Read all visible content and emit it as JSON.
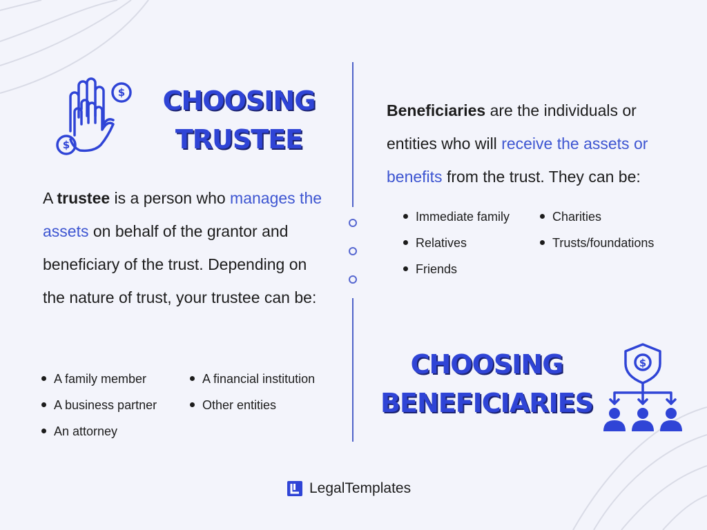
{
  "trustee": {
    "heading_line1": "CHOOSING",
    "heading_line2": "TRUSTEE",
    "para": {
      "pre": "A ",
      "bold": "trustee",
      "mid": " is a person who ",
      "highlight": "manages the assets",
      "post": " on behalf of the grantor and beneficiary of the trust. Depending on the nature of trust, your trustee can be:"
    },
    "col1": [
      "A family member",
      "A business partner",
      "An attorney"
    ],
    "col2": [
      "A financial institution",
      "Other entities"
    ]
  },
  "beneficiaries": {
    "heading_line1": "CHOOSING",
    "heading_line2": "BENEFICIARIES",
    "para": {
      "bold": "Beneficiaries",
      "mid": " are the individuals or entities who will ",
      "highlight": "receive the assets or benefits",
      "post": " from the trust. They can be:"
    },
    "col1": [
      "Immediate family",
      "Relatives",
      "Friends"
    ],
    "col2": [
      "Charities",
      "Trusts/foundations"
    ]
  },
  "icons": {
    "trustee": "hands-with-dollar-coins-icon",
    "beneficiaries": "shield-dollar-distribution-to-people-icon",
    "logo": "legaltemplates-logo-icon"
  },
  "footer": {
    "brand": "LegalTemplates"
  },
  "colors": {
    "accent": "#2f44d6",
    "link": "#3d55d1",
    "background": "#f3f4fb",
    "text": "#1c1c1c"
  }
}
